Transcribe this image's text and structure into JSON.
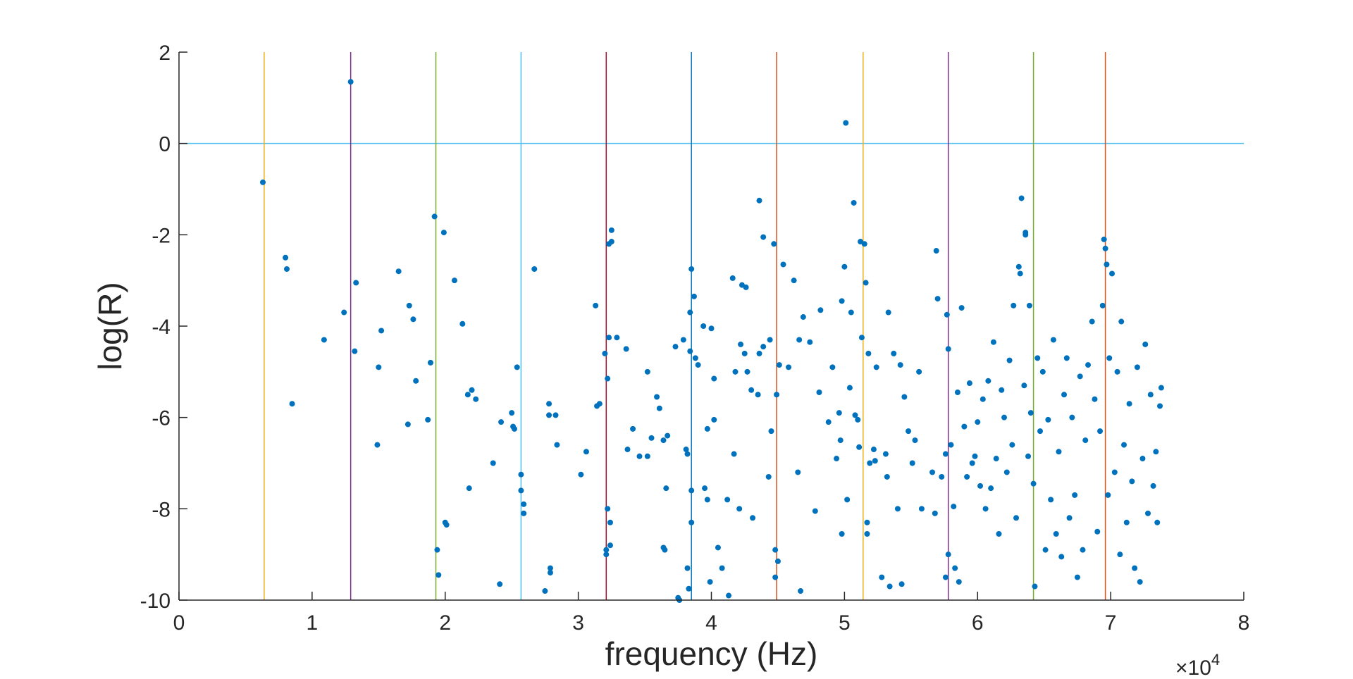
{
  "chart_data": {
    "type": "scatter",
    "title": "",
    "xlabel": "frequency (Hz)",
    "ylabel": "log(R)",
    "x_exponent_label": "×10",
    "x_exponent_power": "4",
    "xlim": [
      0,
      80000
    ],
    "ylim": [
      -10,
      2
    ],
    "x_ticks": [
      0,
      10000,
      20000,
      30000,
      40000,
      50000,
      60000,
      70000,
      80000
    ],
    "x_tick_labels": [
      "0",
      "1",
      "2",
      "3",
      "4",
      "5",
      "6",
      "7",
      "8"
    ],
    "y_ticks": [
      -10,
      -8,
      -6,
      -4,
      -2,
      0,
      2
    ],
    "y_tick_labels": [
      "-10",
      "-8",
      "-6",
      "-4",
      "-2",
      "0",
      "2"
    ],
    "grid": false,
    "colors": {
      "points": "#0072BD",
      "zero_line": "#4DBEEE",
      "axes": "#262626"
    },
    "reference_lines": {
      "horizontal": [
        {
          "y": 0,
          "color": "#4DBEEE"
        }
      ],
      "vertical": [
        {
          "x": 6400,
          "color": "#EDB120"
        },
        {
          "x": 12900,
          "color": "#7E2F8E"
        },
        {
          "x": 19300,
          "color": "#77AC30"
        },
        {
          "x": 25700,
          "color": "#4DBEEE"
        },
        {
          "x": 32100,
          "color": "#A2142F"
        },
        {
          "x": 38500,
          "color": "#0072BD"
        },
        {
          "x": 44900,
          "color": "#D95319"
        },
        {
          "x": 51400,
          "color": "#EDB120"
        },
        {
          "x": 57800,
          "color": "#7E2F8E"
        },
        {
          "x": 64200,
          "color": "#77AC30"
        },
        {
          "x": 69600,
          "color": "#D95319"
        }
      ]
    },
    "points": [
      [
        6300,
        -0.85
      ],
      [
        8000,
        -2.5
      ],
      [
        8100,
        -2.75
      ],
      [
        8500,
        -5.7
      ],
      [
        10900,
        -4.3
      ],
      [
        12400,
        -3.7
      ],
      [
        12900,
        1.35
      ],
      [
        13200,
        -4.55
      ],
      [
        13300,
        -3.05
      ],
      [
        14900,
        -6.6
      ],
      [
        15000,
        -4.9
      ],
      [
        15200,
        -4.1
      ],
      [
        16500,
        -2.8
      ],
      [
        17200,
        -6.15
      ],
      [
        17300,
        -3.55
      ],
      [
        17600,
        -3.85
      ],
      [
        17800,
        -5.2
      ],
      [
        18700,
        -6.05
      ],
      [
        18900,
        -4.8
      ],
      [
        19200,
        -1.6
      ],
      [
        19400,
        -8.9
      ],
      [
        19500,
        -9.45
      ],
      [
        19900,
        -1.95
      ],
      [
        20100,
        -8.35
      ],
      [
        20000,
        -8.3
      ],
      [
        20700,
        -3.0
      ],
      [
        21300,
        -3.95
      ],
      [
        21700,
        -5.5
      ],
      [
        21800,
        -7.55
      ],
      [
        22000,
        -5.4
      ],
      [
        22300,
        -5.6
      ],
      [
        23600,
        -7.0
      ],
      [
        24100,
        -9.65
      ],
      [
        24200,
        -6.1
      ],
      [
        25000,
        -5.9
      ],
      [
        25100,
        -6.2
      ],
      [
        25200,
        -6.25
      ],
      [
        25400,
        -4.9
      ],
      [
        25700,
        -7.25
      ],
      [
        25700,
        -7.6
      ],
      [
        25900,
        -7.9
      ],
      [
        25900,
        -8.1
      ],
      [
        26700,
        -2.75
      ],
      [
        27500,
        -9.8
      ],
      [
        27800,
        -5.7
      ],
      [
        27800,
        -5.95
      ],
      [
        27900,
        -9.3
      ],
      [
        27900,
        -9.4
      ],
      [
        28300,
        -5.95
      ],
      [
        28400,
        -6.6
      ],
      [
        30200,
        -7.25
      ],
      [
        30600,
        -6.75
      ],
      [
        31300,
        -3.55
      ],
      [
        31400,
        -5.75
      ],
      [
        31600,
        -5.7
      ],
      [
        32000,
        -4.6
      ],
      [
        32100,
        -8.9
      ],
      [
        32100,
        -9.0
      ],
      [
        32200,
        -8.0
      ],
      [
        32200,
        -5.15
      ],
      [
        32300,
        -2.2
      ],
      [
        32300,
        -4.25
      ],
      [
        32400,
        -8.3
      ],
      [
        32400,
        -8.8
      ],
      [
        32500,
        -1.9
      ],
      [
        32500,
        -2.15
      ],
      [
        32900,
        -4.25
      ],
      [
        33600,
        -4.5
      ],
      [
        33700,
        -6.7
      ],
      [
        34100,
        -6.25
      ],
      [
        34600,
        -6.85
      ],
      [
        35200,
        -6.85
      ],
      [
        35200,
        -5.0
      ],
      [
        35500,
        -6.45
      ],
      [
        35900,
        -5.55
      ],
      [
        36100,
        -5.8
      ],
      [
        36400,
        -6.5
      ],
      [
        36400,
        -8.85
      ],
      [
        36500,
        -8.9
      ],
      [
        36600,
        -7.55
      ],
      [
        36700,
        -6.4
      ],
      [
        37300,
        -4.45
      ],
      [
        37500,
        -9.95
      ],
      [
        37600,
        -10.0
      ],
      [
        37900,
        -4.3
      ],
      [
        38100,
        -6.7
      ],
      [
        38200,
        -6.8
      ],
      [
        38200,
        -9.3
      ],
      [
        38300,
        -9.75
      ],
      [
        38400,
        -3.7
      ],
      [
        38400,
        -4.55
      ],
      [
        38500,
        -2.75
      ],
      [
        38500,
        -7.6
      ],
      [
        38500,
        -8.3
      ],
      [
        38700,
        -3.35
      ],
      [
        38800,
        -4.7
      ],
      [
        39000,
        -4.85
      ],
      [
        39400,
        -4.0
      ],
      [
        39500,
        -7.55
      ],
      [
        39700,
        -7.8
      ],
      [
        39700,
        -6.25
      ],
      [
        39900,
        -9.6
      ],
      [
        40000,
        -4.05
      ],
      [
        40200,
        -5.15
      ],
      [
        40200,
        -6.05
      ],
      [
        40500,
        -8.85
      ],
      [
        40800,
        -9.3
      ],
      [
        41200,
        -7.8
      ],
      [
        41300,
        -9.9
      ],
      [
        41600,
        -2.95
      ],
      [
        41700,
        -6.8
      ],
      [
        41800,
        -5.0
      ],
      [
        42100,
        -8.0
      ],
      [
        42200,
        -4.4
      ],
      [
        42300,
        -3.1
      ],
      [
        42500,
        -4.6
      ],
      [
        42600,
        -3.15
      ],
      [
        42700,
        -5.0
      ],
      [
        43000,
        -5.4
      ],
      [
        43100,
        -8.2
      ],
      [
        43500,
        -5.5
      ],
      [
        43600,
        -1.25
      ],
      [
        43600,
        -4.6
      ],
      [
        43900,
        -2.05
      ],
      [
        43900,
        -4.45
      ],
      [
        44300,
        -7.3
      ],
      [
        44400,
        -4.3
      ],
      [
        44500,
        -6.3
      ],
      [
        44700,
        -2.2
      ],
      [
        44800,
        -8.9
      ],
      [
        44800,
        -9.5
      ],
      [
        44900,
        -5.5
      ],
      [
        45000,
        -9.15
      ],
      [
        45100,
        -4.85
      ],
      [
        45400,
        -2.65
      ],
      [
        45800,
        -4.9
      ],
      [
        46200,
        -3.0
      ],
      [
        46500,
        -7.2
      ],
      [
        46600,
        -4.3
      ],
      [
        46700,
        -9.8
      ],
      [
        46900,
        -3.8
      ],
      [
        47400,
        -4.35
      ],
      [
        47800,
        -8.05
      ],
      [
        48100,
        -5.45
      ],
      [
        48200,
        -3.65
      ],
      [
        48800,
        -6.1
      ],
      [
        49100,
        -4.9
      ],
      [
        49400,
        -6.9
      ],
      [
        49600,
        -5.9
      ],
      [
        49700,
        -6.5
      ],
      [
        49800,
        -3.45
      ],
      [
        49800,
        -8.55
      ],
      [
        50000,
        -2.7
      ],
      [
        50100,
        0.45
      ],
      [
        50200,
        -7.8
      ],
      [
        50400,
        -5.35
      ],
      [
        50500,
        -3.7
      ],
      [
        50700,
        -1.3
      ],
      [
        50800,
        -5.95
      ],
      [
        51000,
        -6.05
      ],
      [
        51100,
        -6.65
      ],
      [
        51200,
        -2.15
      ],
      [
        51300,
        -4.25
      ],
      [
        51500,
        -2.2
      ],
      [
        51600,
        -3.05
      ],
      [
        51700,
        -8.3
      ],
      [
        51700,
        -8.55
      ],
      [
        51800,
        -4.6
      ],
      [
        51900,
        -7.0
      ],
      [
        52200,
        -6.7
      ],
      [
        52300,
        -6.95
      ],
      [
        52400,
        -4.9
      ],
      [
        52800,
        -9.5
      ],
      [
        53100,
        -6.8
      ],
      [
        53200,
        -7.3
      ],
      [
        53300,
        -3.7
      ],
      [
        53400,
        -9.7
      ],
      [
        53700,
        -4.6
      ],
      [
        54000,
        -8.0
      ],
      [
        54200,
        -4.85
      ],
      [
        54300,
        -9.65
      ],
      [
        54500,
        -5.55
      ],
      [
        54800,
        -6.3
      ],
      [
        55100,
        -7.0
      ],
      [
        55300,
        -6.5
      ],
      [
        55600,
        -5.0
      ],
      [
        55800,
        -8.0
      ],
      [
        56600,
        -7.2
      ],
      [
        56800,
        -8.1
      ],
      [
        56900,
        -2.35
      ],
      [
        57000,
        -3.4
      ],
      [
        57300,
        -7.3
      ],
      [
        57600,
        -6.8
      ],
      [
        57600,
        -9.5
      ],
      [
        57700,
        -3.75
      ],
      [
        57800,
        -4.5
      ],
      [
        57800,
        -9.0
      ],
      [
        58000,
        -6.6
      ],
      [
        58200,
        -7.95
      ],
      [
        58300,
        -9.3
      ],
      [
        58500,
        -5.45
      ],
      [
        58600,
        -9.6
      ],
      [
        58800,
        -3.6
      ],
      [
        59000,
        -6.2
      ],
      [
        59200,
        -7.3
      ],
      [
        59400,
        -5.25
      ],
      [
        59600,
        -7.0
      ],
      [
        59800,
        -6.85
      ],
      [
        60000,
        -6.1
      ],
      [
        60200,
        -7.5
      ],
      [
        60400,
        -5.6
      ],
      [
        60600,
        -8.0
      ],
      [
        60800,
        -5.2
      ],
      [
        61000,
        -7.55
      ],
      [
        61200,
        -4.35
      ],
      [
        61400,
        -6.9
      ],
      [
        61600,
        -8.55
      ],
      [
        61800,
        -5.4
      ],
      [
        62000,
        -6.0
      ],
      [
        62200,
        -7.2
      ],
      [
        62400,
        -4.75
      ],
      [
        62600,
        -6.6
      ],
      [
        62700,
        -3.55
      ],
      [
        62900,
        -8.2
      ],
      [
        63100,
        -2.7
      ],
      [
        63200,
        -2.85
      ],
      [
        63300,
        -1.2
      ],
      [
        63500,
        -5.3
      ],
      [
        63600,
        -1.95
      ],
      [
        63600,
        -2.0
      ],
      [
        63800,
        -6.85
      ],
      [
        63900,
        -3.55
      ],
      [
        64000,
        -5.9
      ],
      [
        64200,
        -7.45
      ],
      [
        64300,
        -9.7
      ],
      [
        64500,
        -4.7
      ],
      [
        64700,
        -6.3
      ],
      [
        64900,
        -5.0
      ],
      [
        65100,
        -8.9
      ],
      [
        65300,
        -6.05
      ],
      [
        65500,
        -7.8
      ],
      [
        65700,
        -4.3
      ],
      [
        65900,
        -8.55
      ],
      [
        66100,
        -6.75
      ],
      [
        66300,
        -9.05
      ],
      [
        66500,
        -5.5
      ],
      [
        66700,
        -4.7
      ],
      [
        66900,
        -8.2
      ],
      [
        67100,
        -6.0
      ],
      [
        67300,
        -7.7
      ],
      [
        67500,
        -9.5
      ],
      [
        67700,
        -5.1
      ],
      [
        67900,
        -8.9
      ],
      [
        68100,
        -6.5
      ],
      [
        68300,
        -4.85
      ],
      [
        68600,
        -3.9
      ],
      [
        68800,
        -5.6
      ],
      [
        69000,
        -8.5
      ],
      [
        69200,
        -6.3
      ],
      [
        69400,
        -3.55
      ],
      [
        69500,
        -2.1
      ],
      [
        69600,
        -2.3
      ],
      [
        69700,
        -2.65
      ],
      [
        69800,
        -7.7
      ],
      [
        69900,
        -4.7
      ],
      [
        70100,
        -2.85
      ],
      [
        70300,
        -7.2
      ],
      [
        70500,
        -5.0
      ],
      [
        70700,
        -9.0
      ],
      [
        70800,
        -3.9
      ],
      [
        71000,
        -6.6
      ],
      [
        71200,
        -8.3
      ],
      [
        71400,
        -5.7
      ],
      [
        71600,
        -7.4
      ],
      [
        71800,
        -9.3
      ],
      [
        72000,
        -4.9
      ],
      [
        72200,
        -9.6
      ],
      [
        72400,
        -6.9
      ],
      [
        72600,
        -4.4
      ],
      [
        72800,
        -8.1
      ],
      [
        73000,
        -5.5
      ],
      [
        73200,
        -7.5
      ],
      [
        73400,
        -6.75
      ],
      [
        73500,
        -8.3
      ],
      [
        73700,
        -5.75
      ],
      [
        73800,
        -5.35
      ]
    ]
  }
}
